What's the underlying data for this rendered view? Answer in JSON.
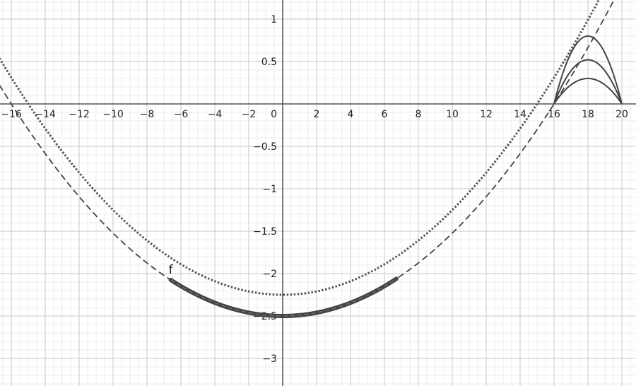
{
  "chart_data": {
    "type": "line",
    "title": "",
    "xlabel": "",
    "ylabel": "",
    "xlim": [
      -16.7,
      20.8
    ],
    "ylim": [
      -3.32,
      1.22
    ],
    "grid": true,
    "x_ticks": [
      -16,
      -14,
      -12,
      -10,
      -8,
      -6,
      -4,
      -2,
      2,
      4,
      6,
      8,
      10,
      12,
      14,
      16,
      18,
      20
    ],
    "y_ticks": [
      1,
      0.5,
      -0.5,
      -1,
      -1.5,
      -2,
      -2.5,
      -3
    ],
    "x_tick_labels": [
      "−16",
      "−14",
      "−12",
      "−10",
      "−8",
      "−6",
      "−4",
      "−2",
      "2",
      "4",
      "6",
      "8",
      "10",
      "12",
      "14",
      "16",
      "18",
      "20"
    ],
    "y_tick_labels": [
      "1",
      "0.5",
      "−0.5",
      "−1",
      "−1.5",
      "−2",
      "−2.5",
      "−3"
    ],
    "origin_label": "0",
    "series": [
      {
        "style": "dashed",
        "formula": "y = 0.009765625 x^2 - 2.5",
        "domain": [
          -16.7,
          20.8
        ],
        "color": "#444444"
      },
      {
        "style": "dotted",
        "formula": "y = 0.01 x^2 - 2.25",
        "domain": [
          -16.7,
          20.8
        ],
        "color": "#555555"
      },
      {
        "name": "f",
        "style": "thick",
        "formula": "y = 0.009765625 x^2 - 2.5",
        "domain": [
          -6.6,
          6.7
        ],
        "color": "#444444"
      },
      {
        "style": "solid",
        "formula": "y = -0.2 (x-16)(x-20)",
        "domain": [
          16,
          20
        ],
        "peak": 0.8,
        "color": "#444444"
      },
      {
        "style": "solid",
        "formula": "y = -0.13 (x-16)(x-20)",
        "domain": [
          16,
          20
        ],
        "peak": 0.52,
        "color": "#444444"
      },
      {
        "style": "solid",
        "formula": "y = -0.075 (x-16)(x-20)",
        "domain": [
          16,
          20
        ],
        "peak": 0.3,
        "color": "#444444"
      }
    ],
    "annotations": [
      {
        "text": "f",
        "x": -6.6,
        "y": -2.05
      }
    ]
  }
}
